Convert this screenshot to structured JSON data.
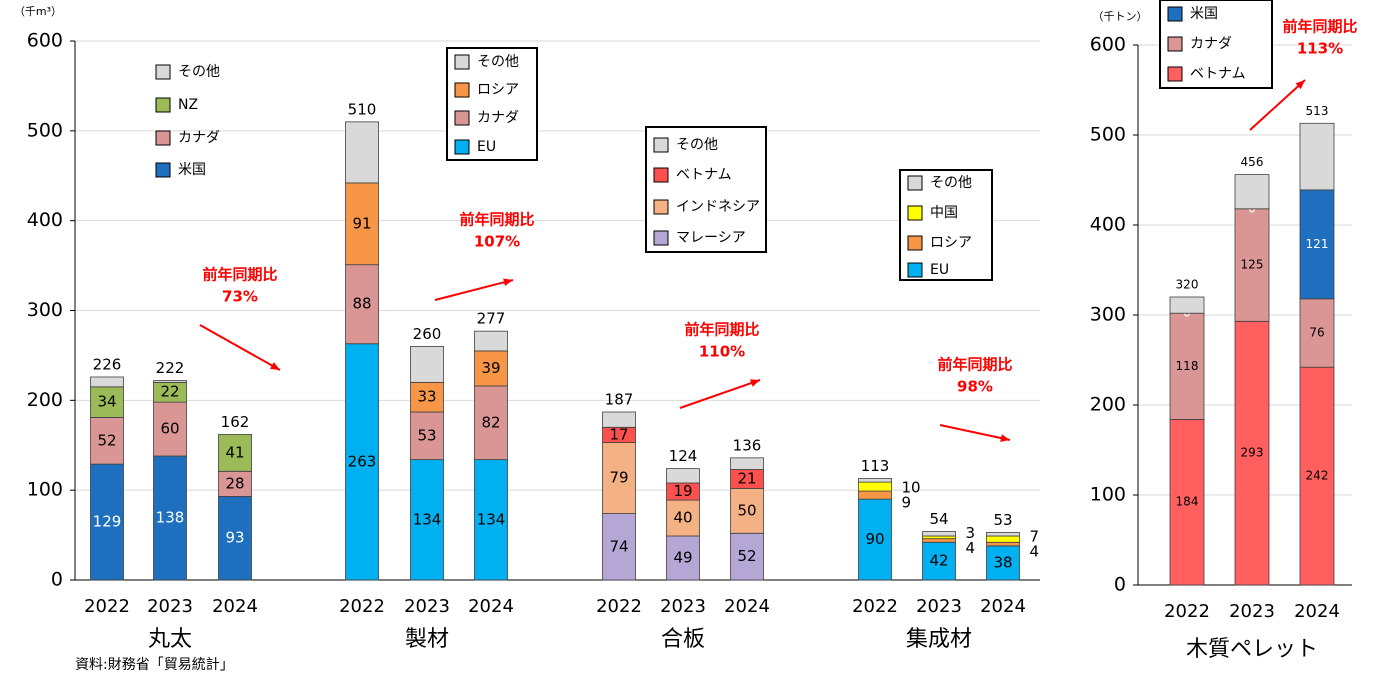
{
  "chart_data": [
    {
      "type": "grouped-stacked-bar",
      "y_unit": "（千m³）",
      "source": "資料:財務省「貿易統計」",
      "ylim": [
        0,
        600
      ],
      "yticks": [
        0,
        100,
        200,
        300,
        400,
        500,
        600
      ],
      "grid": true,
      "groups": [
        {
          "name": "丸太",
          "categories": [
            "2022",
            "2023",
            "2024"
          ],
          "totals": [
            226,
            222,
            162
          ],
          "annotation": [
            "前年同期比",
            "73%"
          ],
          "series": [
            {
              "name": "米国",
              "color": "#1f6fbf",
              "values": [
                129,
                138,
                93
              ],
              "value_labels": [
                "129",
                "138",
                "93"
              ]
            },
            {
              "name": "カナダ",
              "color": "#d99694",
              "values": [
                52,
                60,
                28
              ],
              "value_labels": [
                "52",
                "60",
                "28"
              ]
            },
            {
              "name": "NZ",
              "color": "#9bbb59",
              "values": [
                34,
                22,
                41
              ],
              "value_labels": [
                "34",
                "22",
                "41"
              ]
            },
            {
              "name": "その他",
              "color": "#d9d9d9",
              "values": [
                11,
                2,
                0
              ],
              "value_labels": [
                null,
                null,
                null
              ]
            }
          ]
        },
        {
          "name": "製材",
          "categories": [
            "2022",
            "2023",
            "2024"
          ],
          "totals": [
            510,
            260,
            277
          ],
          "annotation": [
            "前年同期比",
            "107%"
          ],
          "series": [
            {
              "name": "EU",
              "color": "#00b0f0",
              "values": [
                263,
                134,
                134
              ],
              "value_labels": [
                "263",
                "134",
                "134"
              ]
            },
            {
              "name": "カナダ",
              "color": "#d99694",
              "values": [
                88,
                53,
                82
              ],
              "value_labels": [
                "88",
                "53",
                "82"
              ]
            },
            {
              "name": "ロシア",
              "color": "#f79646",
              "values": [
                91,
                33,
                39
              ],
              "value_labels": [
                "91",
                "33",
                "39"
              ]
            },
            {
              "name": "その他",
              "color": "#d9d9d9",
              "values": [
                68,
                40,
                22
              ],
              "value_labels": [
                null,
                null,
                null
              ]
            }
          ]
        },
        {
          "name": "合板",
          "categories": [
            "2022",
            "2023",
            "2024"
          ],
          "totals": [
            187,
            124,
            136
          ],
          "annotation": [
            "前年同期比",
            "110%"
          ],
          "series": [
            {
              "name": "マレーシア",
              "color": "#b4a7d6",
              "values": [
                74,
                49,
                52
              ],
              "value_labels": [
                "74",
                "49",
                "52"
              ]
            },
            {
              "name": "インドネシア",
              "color": "#f4b183",
              "values": [
                79,
                40,
                50
              ],
              "value_labels": [
                "79",
                "40",
                "50"
              ]
            },
            {
              "name": "ベトナム",
              "color": "#ff5050",
              "values": [
                17,
                19,
                21
              ],
              "value_labels": [
                "17",
                "19",
                "21"
              ]
            },
            {
              "name": "その他",
              "color": "#d9d9d9",
              "values": [
                17,
                16,
                13
              ],
              "value_labels": [
                null,
                null,
                null
              ]
            }
          ]
        },
        {
          "name": "集成材",
          "categories": [
            "2022",
            "2023",
            "2024"
          ],
          "totals": [
            113,
            54,
            53
          ],
          "annotation": [
            "前年同期比",
            "98%"
          ],
          "series": [
            {
              "name": "EU",
              "color": "#00b0f0",
              "values": [
                90,
                42,
                38
              ],
              "value_labels": [
                "90",
                "42",
                "38"
              ]
            },
            {
              "name": "ロシア",
              "color": "#f79646",
              "values": [
                9,
                4,
                4
              ],
              "value_labels": [
                "9",
                "4",
                "4"
              ],
              "label_position": "outside"
            },
            {
              "name": "中国",
              "color": "#ffff00",
              "values": [
                10,
                3,
                7
              ],
              "value_labels": [
                "10",
                "3",
                "7"
              ],
              "label_position": "outside"
            },
            {
              "name": "その他",
              "color": "#d9d9d9",
              "values": [
                4,
                5,
                4
              ],
              "value_labels": [
                null,
                null,
                null
              ]
            }
          ]
        }
      ]
    },
    {
      "type": "stacked-bar",
      "y_unit": "（千トン）",
      "title": "木質ペレット",
      "ylim": [
        0,
        600
      ],
      "yticks": [
        0,
        100,
        200,
        300,
        400,
        500,
        600
      ],
      "grid": true,
      "categories": [
        "2022",
        "2023",
        "2024"
      ],
      "totals": [
        320,
        456,
        513
      ],
      "annotation": [
        "前年同期比",
        "113%"
      ],
      "series": [
        {
          "name": "ベトナム",
          "color": "#ff5f5f",
          "values": [
            184,
            293,
            242
          ],
          "value_labels": [
            "184",
            "293",
            "242"
          ]
        },
        {
          "name": "カナダ",
          "color": "#d99694",
          "values": [
            118,
            125,
            76
          ],
          "value_labels": [
            "118",
            "125",
            "76"
          ]
        },
        {
          "name": "米国",
          "color": "#1f6fbf",
          "values": [
            0,
            0,
            121
          ],
          "value_labels": [
            "0",
            "0",
            "121"
          ]
        },
        {
          "name": "その他",
          "color": "#d9d9d9",
          "values": [
            18,
            38,
            74
          ],
          "value_labels": [
            null,
            null,
            null
          ],
          "in_legend": false
        }
      ]
    }
  ]
}
